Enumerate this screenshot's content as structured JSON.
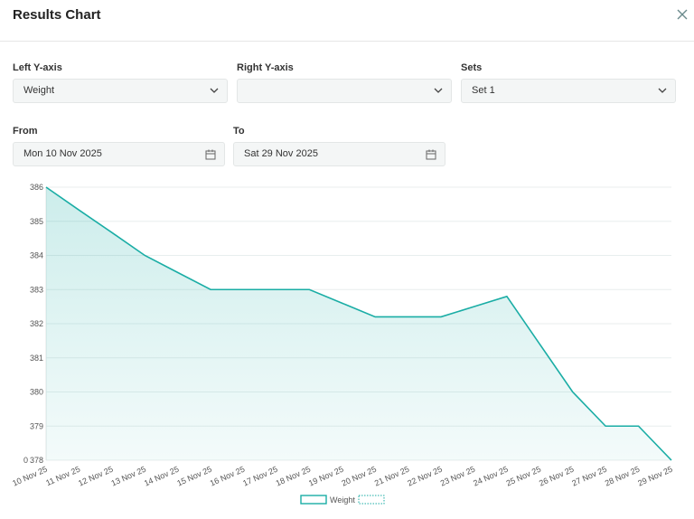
{
  "header": {
    "title": "Results Chart"
  },
  "form": {
    "left_axis": {
      "label": "Left Y-axis",
      "value": "Weight"
    },
    "right_axis": {
      "label": "Right Y-axis"
    },
    "sets": {
      "label": "Sets",
      "value": "Set 1"
    },
    "from": {
      "label": "From",
      "value": "Mon 10 Nov 2025"
    },
    "to": {
      "label": "To",
      "value": "Sat 29 Nov 2025"
    }
  },
  "chart_data": {
    "type": "line",
    "area": true,
    "categories": [
      "10 Nov 25",
      "11 Nov 25",
      "12 Nov 25",
      "13 Nov 25",
      "14 Nov 25",
      "15 Nov 25",
      "16 Nov 25",
      "17 Nov 25",
      "18 Nov 25",
      "19 Nov 25",
      "20 Nov 25",
      "21 Nov 25",
      "22 Nov 25",
      "23 Nov 25",
      "24 Nov 25",
      "25 Nov 25",
      "26 Nov 25",
      "27 Nov 25",
      "28 Nov 25",
      "29 Nov 25"
    ],
    "series": [
      {
        "name": "Weight",
        "color": "#1aada5",
        "values": [
          386,
          385.33,
          384.67,
          384,
          383.5,
          383,
          383,
          383,
          383,
          382.6,
          382.2,
          382.2,
          382.2,
          382.5,
          382.8,
          381.4,
          380,
          379,
          379,
          378
        ]
      }
    ],
    "ylim": [
      378,
      386
    ],
    "yticks": [
      378,
      379,
      380,
      381,
      382,
      383,
      384,
      385,
      386
    ],
    "y2lim": [
      0,
      1
    ],
    "y2ticks": [
      0
    ],
    "grid": true
  }
}
